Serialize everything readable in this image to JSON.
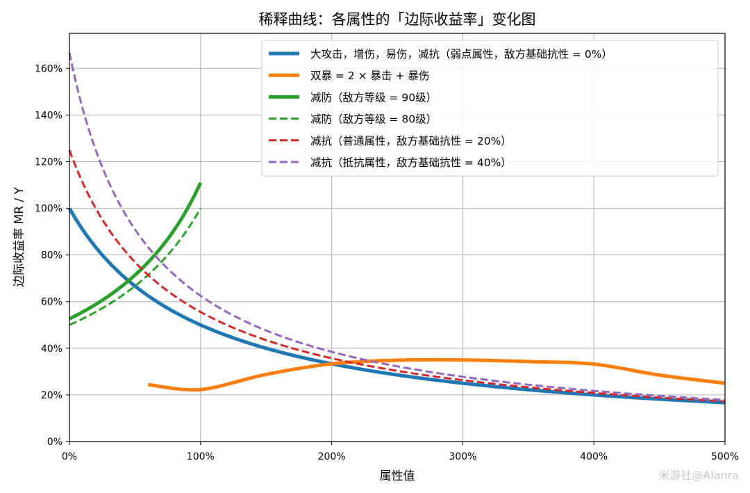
{
  "chart_data": {
    "type": "line",
    "title": "稀释曲线：各属性的「边际收益率」变化图",
    "xlabel": "属性值",
    "ylabel": "边际收益率 MR / Y",
    "xlim": [
      0,
      500
    ],
    "ylim": [
      0,
      175
    ],
    "x_ticks": [
      "0%",
      "100%",
      "200%",
      "300%",
      "400%",
      "500%"
    ],
    "y_ticks": [
      "0%",
      "20%",
      "40%",
      "60%",
      "80%",
      "100%",
      "120%",
      "140%",
      "160%"
    ],
    "grid": true,
    "legend_position": "top-right",
    "series": [
      {
        "name": "大攻击，增伤，易伤，减抗（弱点属性，敌方基础抗性 = 0%）",
        "color": "#1f77b4",
        "dash": "solid",
        "width": "thick",
        "formula": "100/(1+x/100)",
        "x_range": [
          0,
          500
        ]
      },
      {
        "name": "双暴 = 2 × 暴击 + 暴伤",
        "color": "#ff7f0e",
        "dash": "solid",
        "width": "thick",
        "x": [
          60,
          100,
          150,
          200,
          250,
          300,
          350,
          400,
          450,
          500
        ],
        "y": [
          24.4,
          22.3,
          28.8,
          33.3,
          34.9,
          35.0,
          34.3,
          33.2,
          28.5,
          25.0
        ]
      },
      {
        "name": "减防（敌方等级 = 90级）",
        "color": "#2ca02c",
        "dash": "solid",
        "width": "thick",
        "formula": "52.6/(1-0.526*x/100)",
        "x_range": [
          0,
          100
        ]
      },
      {
        "name": "减防（敌方等级 = 80级）",
        "color": "#2ca02c",
        "dash": "dashed",
        "width": "medium",
        "formula": "50/(1-0.5*x/100)",
        "x_range": [
          0,
          100
        ]
      },
      {
        "name": "减抗（普通属性，敌方基础抗性 = 20%）",
        "color": "#d62728",
        "dash": "dashed",
        "width": "medium",
        "formula": "125/(1+1.25*x/100)",
        "x_range": [
          0,
          500
        ]
      },
      {
        "name": "减抗（抵抗属性，敌方基础抗性 = 40%）",
        "color": "#9467bd",
        "dash": "dashed",
        "width": "medium",
        "formula": "166.7/(1+1.667*x/100)",
        "x_range": [
          0,
          500
        ]
      }
    ]
  },
  "watermark": "米游社@Alanra"
}
